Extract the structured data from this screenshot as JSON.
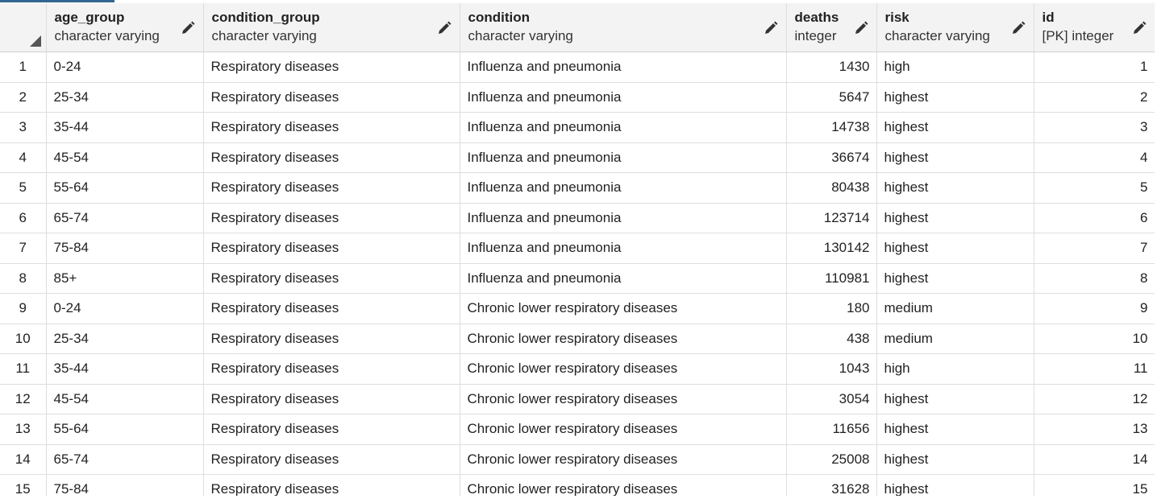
{
  "columns": [
    {
      "name": "age_group",
      "type": "character varying"
    },
    {
      "name": "condition_group",
      "type": "character varying"
    },
    {
      "name": "condition",
      "type": "character varying"
    },
    {
      "name": "deaths",
      "type": "integer"
    },
    {
      "name": "risk",
      "type": "character varying"
    },
    {
      "name": "id",
      "type": "[PK] integer"
    }
  ],
  "rows": [
    {
      "num": "1",
      "age_group": "0-24",
      "condition_group": "Respiratory diseases",
      "condition": "Influenza and pneumonia",
      "deaths": "1430",
      "risk": "high",
      "id": "1"
    },
    {
      "num": "2",
      "age_group": "25-34",
      "condition_group": "Respiratory diseases",
      "condition": "Influenza and pneumonia",
      "deaths": "5647",
      "risk": "highest",
      "id": "2"
    },
    {
      "num": "3",
      "age_group": "35-44",
      "condition_group": "Respiratory diseases",
      "condition": "Influenza and pneumonia",
      "deaths": "14738",
      "risk": "highest",
      "id": "3"
    },
    {
      "num": "4",
      "age_group": "45-54",
      "condition_group": "Respiratory diseases",
      "condition": "Influenza and pneumonia",
      "deaths": "36674",
      "risk": "highest",
      "id": "4"
    },
    {
      "num": "5",
      "age_group": "55-64",
      "condition_group": "Respiratory diseases",
      "condition": "Influenza and pneumonia",
      "deaths": "80438",
      "risk": "highest",
      "id": "5"
    },
    {
      "num": "6",
      "age_group": "65-74",
      "condition_group": "Respiratory diseases",
      "condition": "Influenza and pneumonia",
      "deaths": "123714",
      "risk": "highest",
      "id": "6"
    },
    {
      "num": "7",
      "age_group": "75-84",
      "condition_group": "Respiratory diseases",
      "condition": "Influenza and pneumonia",
      "deaths": "130142",
      "risk": "highest",
      "id": "7"
    },
    {
      "num": "8",
      "age_group": "85+",
      "condition_group": "Respiratory diseases",
      "condition": "Influenza and pneumonia",
      "deaths": "110981",
      "risk": "highest",
      "id": "8"
    },
    {
      "num": "9",
      "age_group": "0-24",
      "condition_group": "Respiratory diseases",
      "condition": "Chronic lower respiratory diseases",
      "deaths": "180",
      "risk": "medium",
      "id": "9"
    },
    {
      "num": "10",
      "age_group": "25-34",
      "condition_group": "Respiratory diseases",
      "condition": "Chronic lower respiratory diseases",
      "deaths": "438",
      "risk": "medium",
      "id": "10"
    },
    {
      "num": "11",
      "age_group": "35-44",
      "condition_group": "Respiratory diseases",
      "condition": "Chronic lower respiratory diseases",
      "deaths": "1043",
      "risk": "high",
      "id": "11"
    },
    {
      "num": "12",
      "age_group": "45-54",
      "condition_group": "Respiratory diseases",
      "condition": "Chronic lower respiratory diseases",
      "deaths": "3054",
      "risk": "highest",
      "id": "12"
    },
    {
      "num": "13",
      "age_group": "55-64",
      "condition_group": "Respiratory diseases",
      "condition": "Chronic lower respiratory diseases",
      "deaths": "11656",
      "risk": "highest",
      "id": "13"
    },
    {
      "num": "14",
      "age_group": "65-74",
      "condition_group": "Respiratory diseases",
      "condition": "Chronic lower respiratory diseases",
      "deaths": "25008",
      "risk": "highest",
      "id": "14"
    },
    {
      "num": "15",
      "age_group": "75-84",
      "condition_group": "Respiratory diseases",
      "condition": "Chronic lower respiratory diseases",
      "deaths": "31628",
      "risk": "highest",
      "id": "15"
    }
  ],
  "icons": {
    "edit": "pencil-icon",
    "select_all": "select-all-triangle-icon"
  },
  "colors": {
    "accent": "#326690",
    "header_bg": "#f3f3f3",
    "grid_line": "#dedede"
  }
}
